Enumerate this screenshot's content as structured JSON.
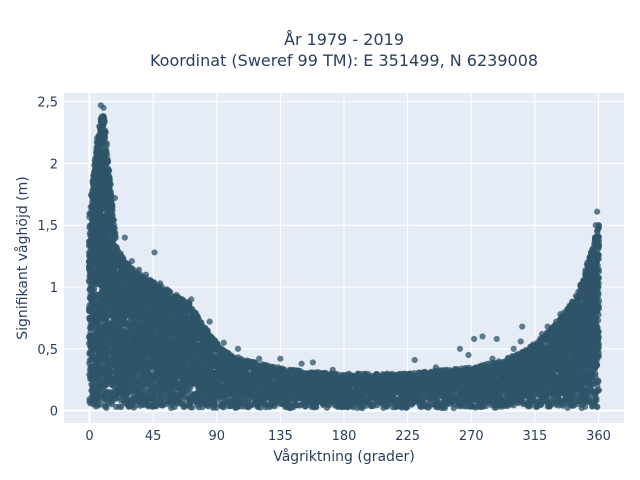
{
  "chart_data": {
    "type": "scatter",
    "title_line1": "År 1979 - 2019",
    "title_line2": "Koordinat (Sweref 99 TM): E 351499, N 6239008",
    "xlabel": "Vågriktning (grader)",
    "ylabel": "Signifikant våghöjd (m)",
    "xlim": [
      -18,
      378
    ],
    "ylim": [
      -0.1,
      2.57
    ],
    "x_ticks": [
      0,
      45,
      90,
      135,
      180,
      225,
      270,
      315,
      360
    ],
    "x_tick_labels": [
      "0",
      "45",
      "90",
      "135",
      "180",
      "225",
      "270",
      "315",
      "360"
    ],
    "y_ticks": [
      0,
      0.5,
      1,
      1.5,
      2,
      2.5
    ],
    "y_tick_labels": [
      "0",
      "0,5",
      "1",
      "1,5",
      "2",
      "2,5"
    ],
    "grid": true,
    "legend": "none",
    "colors": {
      "plot_bg": "#e5ecf6",
      "marker": "#2f5468",
      "text": "#2a3f5f"
    },
    "envelope": {
      "direction": [
        0,
        5,
        10,
        15,
        20,
        30,
        45,
        60,
        70,
        80,
        90,
        100,
        120,
        135,
        150,
        180,
        200,
        225,
        240,
        270,
        290,
        310,
        330,
        345,
        355,
        360
      ],
      "max_height": [
        1.6,
        2.2,
        2.45,
        1.8,
        1.3,
        1.15,
        1.05,
        0.95,
        0.88,
        0.7,
        0.55,
        0.45,
        0.38,
        0.35,
        0.32,
        0.3,
        0.3,
        0.3,
        0.32,
        0.35,
        0.4,
        0.5,
        0.7,
        0.95,
        1.3,
        1.5
      ]
    },
    "outliers": [
      {
        "x": 8,
        "y": 2.47
      },
      {
        "x": 10,
        "y": 2.45
      },
      {
        "x": 9,
        "y": 2.38
      },
      {
        "x": 7,
        "y": 2.3
      },
      {
        "x": 12,
        "y": 2.1
      },
      {
        "x": 15,
        "y": 1.83
      },
      {
        "x": 18,
        "y": 1.72
      },
      {
        "x": 2,
        "y": 1.78
      },
      {
        "x": 5,
        "y": 1.92
      },
      {
        "x": 25,
        "y": 1.4
      },
      {
        "x": 30,
        "y": 1.21
      },
      {
        "x": 46,
        "y": 1.28
      },
      {
        "x": 35,
        "y": 1.14
      },
      {
        "x": 40,
        "y": 1.1
      },
      {
        "x": 50,
        "y": 1.03
      },
      {
        "x": 55,
        "y": 0.98
      },
      {
        "x": 62,
        "y": 0.92
      },
      {
        "x": 72,
        "y": 0.9
      },
      {
        "x": 85,
        "y": 0.72
      },
      {
        "x": 95,
        "y": 0.55
      },
      {
        "x": 105,
        "y": 0.5
      },
      {
        "x": 120,
        "y": 0.42
      },
      {
        "x": 135,
        "y": 0.42
      },
      {
        "x": 150,
        "y": 0.38
      },
      {
        "x": 158,
        "y": 0.39
      },
      {
        "x": 172,
        "y": 0.33
      },
      {
        "x": 190,
        "y": 0.3
      },
      {
        "x": 230,
        "y": 0.41
      },
      {
        "x": 245,
        "y": 0.35
      },
      {
        "x": 262,
        "y": 0.5
      },
      {
        "x": 268,
        "y": 0.45
      },
      {
        "x": 272,
        "y": 0.58
      },
      {
        "x": 278,
        "y": 0.6
      },
      {
        "x": 285,
        "y": 0.42
      },
      {
        "x": 288,
        "y": 0.58
      },
      {
        "x": 300,
        "y": 0.5
      },
      {
        "x": 305,
        "y": 0.56
      },
      {
        "x": 306,
        "y": 0.68
      },
      {
        "x": 320,
        "y": 0.62
      },
      {
        "x": 324,
        "y": 0.68
      },
      {
        "x": 330,
        "y": 0.72
      },
      {
        "x": 333,
        "y": 0.78
      },
      {
        "x": 338,
        "y": 0.82
      },
      {
        "x": 342,
        "y": 0.88
      },
      {
        "x": 347,
        "y": 0.97
      },
      {
        "x": 352,
        "y": 1.05
      },
      {
        "x": 356,
        "y": 1.2
      },
      {
        "x": 357,
        "y": 1.35
      },
      {
        "x": 358,
        "y": 1.5
      },
      {
        "x": 359,
        "y": 1.61
      },
      {
        "x": 360,
        "y": 1.5
      }
    ]
  }
}
